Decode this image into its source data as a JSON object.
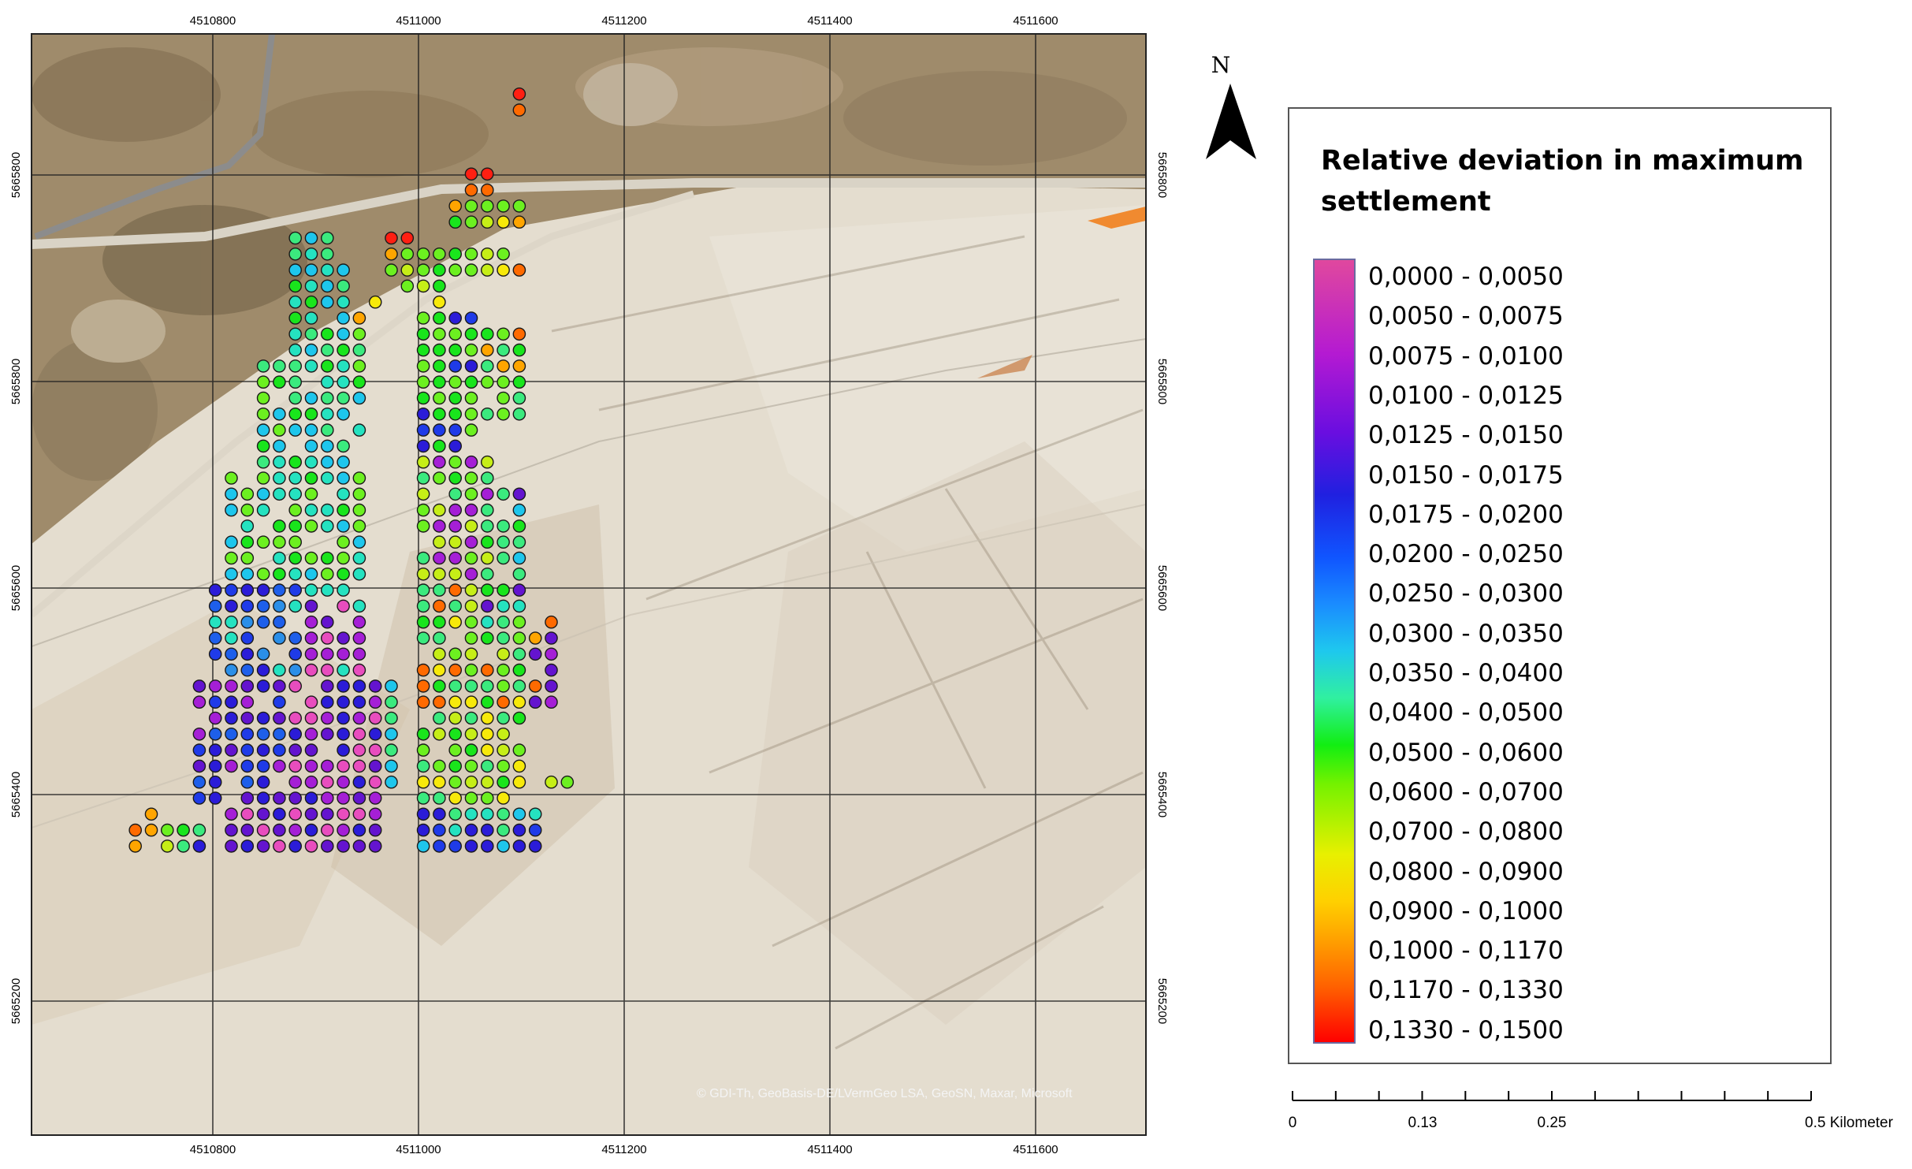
{
  "map": {
    "x_ticks": [
      "4510800",
      "4511000",
      "4511200",
      "4511400",
      "4511600"
    ],
    "y_ticks": [
      "5665800",
      "5665600",
      "5665400",
      "5665200"
    ],
    "north_label": "N",
    "attribution": "© GDI-Th, GeoBasis-DE/LVermGeo LSA, GeoSN, Maxar, Microsoft",
    "scale_bar": {
      "labels": [
        "0",
        "0.13",
        "0.25",
        "0.5 Kilometer"
      ]
    },
    "basemap": "aerial imagery of an open-pit mining area",
    "point_colors": [
      "#e84dbe",
      "#a51fd6",
      "#6414cf",
      "#2b1cd8",
      "#1f3be8",
      "#1e5fea",
      "#2b8fe8",
      "#1ec6ec",
      "#25e2c0",
      "#3bea7e",
      "#19e51c",
      "#6cf020",
      "#c6ee17",
      "#f7e90a",
      "#ffa500",
      "#ff6a00",
      "#ff1f12"
    ]
  },
  "legend": {
    "title": "Relative deviation in maximum settlement",
    "classes": [
      "0,0000 - 0,0050",
      "0,0050 - 0,0075",
      "0,0075 - 0,0100",
      "0,0100 - 0,0125",
      "0,0125 - 0,0150",
      "0,0150 - 0,0175",
      "0,0175 - 0,0200",
      "0,0200 - 0,0250",
      "0,0250 - 0,0300",
      "0,0300 - 0,0350",
      "0,0350 - 0,0400",
      "0,0400 - 0,0500",
      "0,0500 - 0,0600",
      "0,0600 - 0,0700",
      "0,0700 - 0,0800",
      "0,0800 - 0,0900",
      "0,0900 - 0,1000",
      "0,1000 - 0,1170",
      "0,1170 - 0,1330",
      "0,1330 - 0,1500"
    ]
  }
}
